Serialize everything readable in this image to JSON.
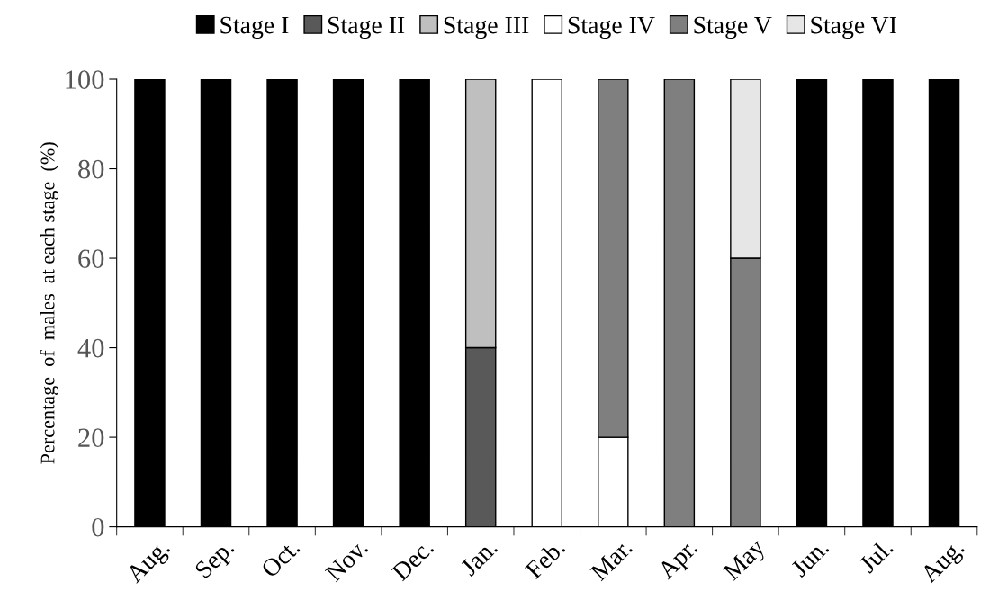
{
  "chart_data": {
    "type": "bar",
    "stacked": true,
    "ylabel": "Percentage  of  males  at each stage  (%)",
    "categories": [
      "Aug.",
      "Sep.",
      "Oct.",
      "Nov.",
      "Dec.",
      "Jan.",
      "Feb.",
      "Mar.",
      "Apr.",
      "May",
      "Jun.",
      "Jul.",
      "Aug."
    ],
    "series": [
      {
        "name": "Stage I",
        "color": "#000000",
        "values": [
          100,
          100,
          100,
          100,
          100,
          0,
          0,
          0,
          0,
          0,
          100,
          100,
          100
        ]
      },
      {
        "name": "Stage II",
        "color": "#595959",
        "values": [
          0,
          0,
          0,
          0,
          0,
          40,
          0,
          0,
          0,
          0,
          0,
          0,
          0
        ]
      },
      {
        "name": "Stage III",
        "color": "#bfbfbf",
        "values": [
          0,
          0,
          0,
          0,
          0,
          60,
          0,
          0,
          0,
          0,
          0,
          0,
          0
        ]
      },
      {
        "name": "Stage IV",
        "color": "#ffffff",
        "values": [
          0,
          0,
          0,
          0,
          0,
          0,
          100,
          20,
          0,
          0,
          0,
          0,
          0
        ]
      },
      {
        "name": "Stage V",
        "color": "#7f7f7f",
        "values": [
          0,
          0,
          0,
          0,
          0,
          0,
          0,
          80,
          100,
          60,
          0,
          0,
          0
        ]
      },
      {
        "name": "Stage VI",
        "color": "#e6e6e6",
        "values": [
          0,
          0,
          0,
          0,
          0,
          0,
          0,
          0,
          0,
          40,
          0,
          0,
          0
        ]
      }
    ],
    "ylim": [
      0,
      100
    ],
    "yticks": [
      0,
      20,
      40,
      60,
      80,
      100
    ],
    "grid": false,
    "legend": "top"
  }
}
